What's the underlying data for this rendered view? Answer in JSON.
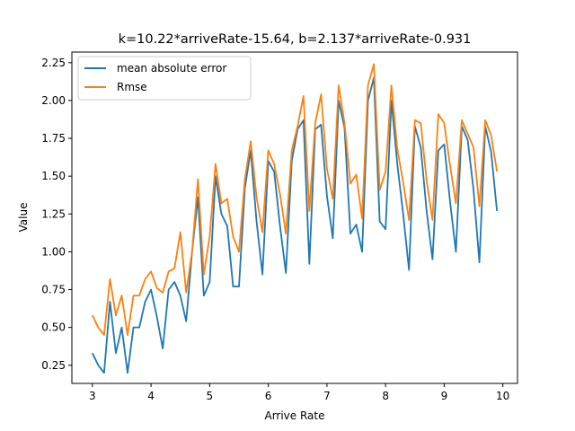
{
  "chart_data": {
    "type": "line",
    "title": "k=10.22*arriveRate-15.64, b=2.137*arriveRate-0.931",
    "xlabel": "Arrive Rate",
    "ylabel": "Value",
    "xlim": [
      2.65,
      10.25
    ],
    "ylim": [
      0.13,
      2.32
    ],
    "xticks": [
      3,
      4,
      5,
      6,
      7,
      8,
      9,
      10
    ],
    "xtick_labels": [
      "3",
      "4",
      "5",
      "6",
      "7",
      "8",
      "9",
      "10"
    ],
    "yticks": [
      0.25,
      0.5,
      0.75,
      1.0,
      1.25,
      1.5,
      1.75,
      2.0,
      2.25
    ],
    "ytick_labels": [
      "0.25",
      "0.50",
      "0.75",
      "1.00",
      "1.25",
      "1.50",
      "1.75",
      "2.00",
      "2.25"
    ],
    "grid": false,
    "legend_position": "upper-left",
    "x": [
      3.0,
      3.1,
      3.2,
      3.3,
      3.4,
      3.5,
      3.6,
      3.7,
      3.8,
      3.9,
      4.0,
      4.1,
      4.2,
      4.3,
      4.4,
      4.5,
      4.6,
      4.7,
      4.8,
      4.9,
      5.0,
      5.1,
      5.2,
      5.3,
      5.4,
      5.5,
      5.6,
      5.7,
      5.8,
      5.9,
      6.0,
      6.1,
      6.2,
      6.3,
      6.4,
      6.5,
      6.6,
      6.7,
      6.8,
      6.9,
      7.0,
      7.1,
      7.2,
      7.3,
      7.4,
      7.5,
      7.6,
      7.7,
      7.8,
      7.9,
      8.0,
      8.1,
      8.2,
      8.3,
      8.4,
      8.5,
      8.6,
      8.7,
      8.8,
      8.9,
      9.0,
      9.1,
      9.2,
      9.3,
      9.4,
      9.5,
      9.6,
      9.7,
      9.8,
      9.9
    ],
    "series": [
      {
        "name": "mean absolute error",
        "color": "#1f77b4",
        "values": [
          0.33,
          0.25,
          0.2,
          0.67,
          0.33,
          0.5,
          0.2,
          0.5,
          0.5,
          0.67,
          0.75,
          0.57,
          0.36,
          0.75,
          0.8,
          0.71,
          0.54,
          1.0,
          1.36,
          0.71,
          0.8,
          1.5,
          1.25,
          1.17,
          0.77,
          0.77,
          1.42,
          1.67,
          1.2,
          0.85,
          1.6,
          1.53,
          1.17,
          0.86,
          1.6,
          1.81,
          1.87,
          0.92,
          1.81,
          1.84,
          1.37,
          1.09,
          2.0,
          1.82,
          1.12,
          1.18,
          1.0,
          2.0,
          2.15,
          1.2,
          1.15,
          2.0,
          1.58,
          1.25,
          0.88,
          1.83,
          1.69,
          1.27,
          0.95,
          1.67,
          1.71,
          1.33,
          1.0,
          1.83,
          1.74,
          1.41,
          0.93,
          1.83,
          1.66,
          1.27
        ]
      },
      {
        "name": "Rmse",
        "color": "#ff7f0e",
        "values": [
          0.58,
          0.5,
          0.45,
          0.82,
          0.58,
          0.71,
          0.45,
          0.71,
          0.71,
          0.82,
          0.87,
          0.76,
          0.73,
          0.87,
          0.89,
          1.13,
          0.73,
          1.0,
          1.48,
          0.85,
          1.1,
          1.58,
          1.32,
          1.35,
          1.1,
          1.0,
          1.48,
          1.73,
          1.36,
          1.13,
          1.67,
          1.58,
          1.38,
          1.12,
          1.67,
          1.83,
          2.03,
          1.27,
          1.85,
          2.04,
          1.55,
          1.35,
          2.1,
          1.85,
          1.45,
          1.51,
          1.22,
          2.1,
          2.24,
          1.41,
          1.53,
          2.1,
          1.68,
          1.46,
          1.21,
          1.87,
          1.85,
          1.47,
          1.21,
          1.91,
          1.85,
          1.57,
          1.32,
          1.87,
          1.78,
          1.69,
          1.3,
          1.87,
          1.77,
          1.53
        ]
      }
    ]
  }
}
